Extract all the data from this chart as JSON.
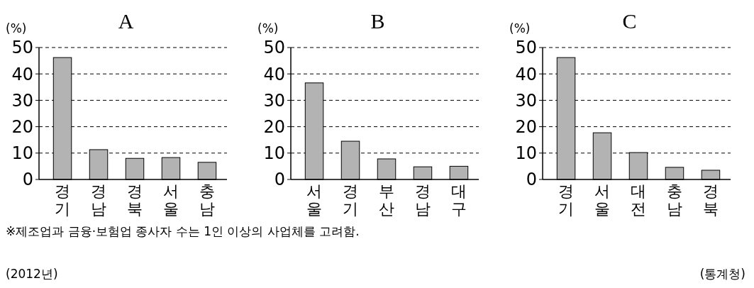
{
  "chart_data": [
    {
      "type": "bar",
      "title": "A",
      "ylabel": "(%)",
      "categories": [
        "경기",
        "경남",
        "경북",
        "서울",
        "충남"
      ],
      "values": [
        46.2,
        11.3,
        8,
        8.3,
        6.5
      ],
      "color": "#b3b3b3",
      "ylim": [
        0,
        50
      ],
      "yticks": [
        0,
        10,
        20,
        30,
        40,
        50
      ],
      "grid": "y"
    },
    {
      "type": "bar",
      "title": "B",
      "ylabel": "(%)",
      "categories": [
        "서울",
        "경기",
        "부산",
        "경남",
        "대구"
      ],
      "values": [
        36.6,
        14.5,
        7.8,
        4.8,
        5
      ],
      "color": "#b3b3b3",
      "ylim": [
        0,
        50
      ],
      "yticks": [
        0,
        10,
        20,
        30,
        40,
        50
      ],
      "grid": "y"
    },
    {
      "type": "bar",
      "title": "C",
      "ylabel": "(%)",
      "categories": [
        "경기",
        "서울",
        "대전",
        "충남",
        "경북"
      ],
      "values": [
        46.2,
        17.7,
        10.2,
        4.6,
        3.5
      ],
      "color": "#b3b3b3",
      "ylim": [
        0,
        50
      ],
      "yticks": [
        0,
        10,
        20,
        30,
        40,
        50
      ],
      "grid": "y",
      "annotations": [
        "※제조업과 금융·보험업 종사자 수는 1인 이상의 사업체를 고려함.",
        "(2012년)",
        "(통계청)"
      ]
    }
  ]
}
